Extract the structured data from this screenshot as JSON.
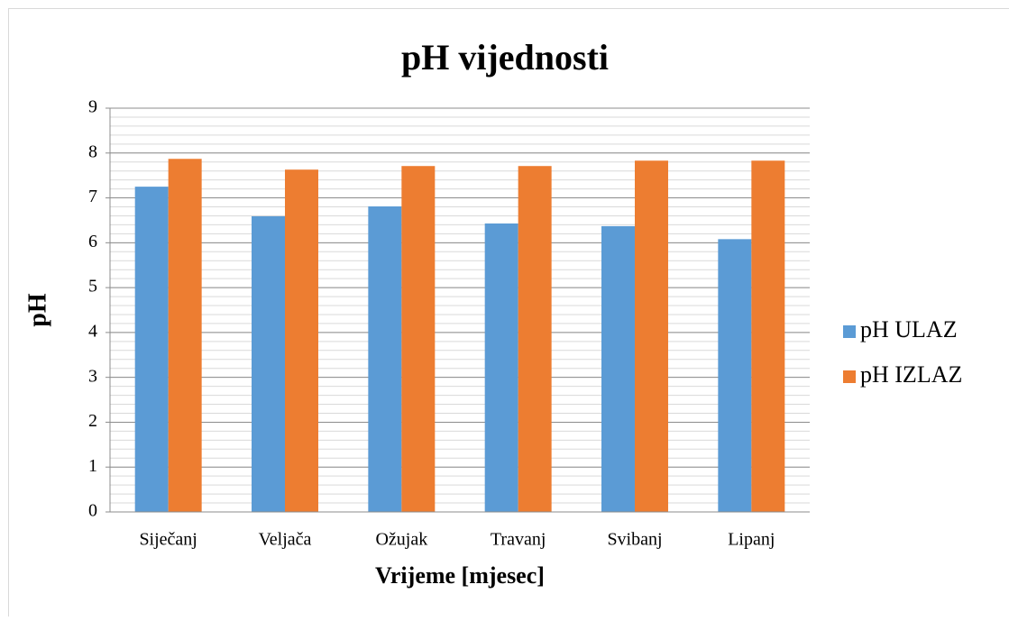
{
  "chart_data": {
    "type": "bar",
    "title": "pH vijednosti",
    "x_label": "Vrijeme [mjesec]",
    "y_label": "pH",
    "categories": [
      "Siječanj",
      "Veljača",
      "Ožujak",
      "Travanj",
      "Svibanj",
      "Lipanj"
    ],
    "series": [
      {
        "name": "pH ULAZ",
        "color": "#5b9bd5",
        "values": [
          7.25,
          6.59,
          6.81,
          6.43,
          6.37,
          6.08
        ]
      },
      {
        "name": "pH IZLAZ",
        "color": "#ed7d31",
        "values": [
          7.87,
          7.63,
          7.71,
          7.71,
          7.83,
          7.83
        ]
      }
    ],
    "ylim": [
      0,
      9
    ],
    "yticks": [
      0,
      1,
      2,
      3,
      4,
      5,
      6,
      7,
      8,
      9
    ],
    "yminor": 0.2,
    "grid": true,
    "legend": "right"
  }
}
